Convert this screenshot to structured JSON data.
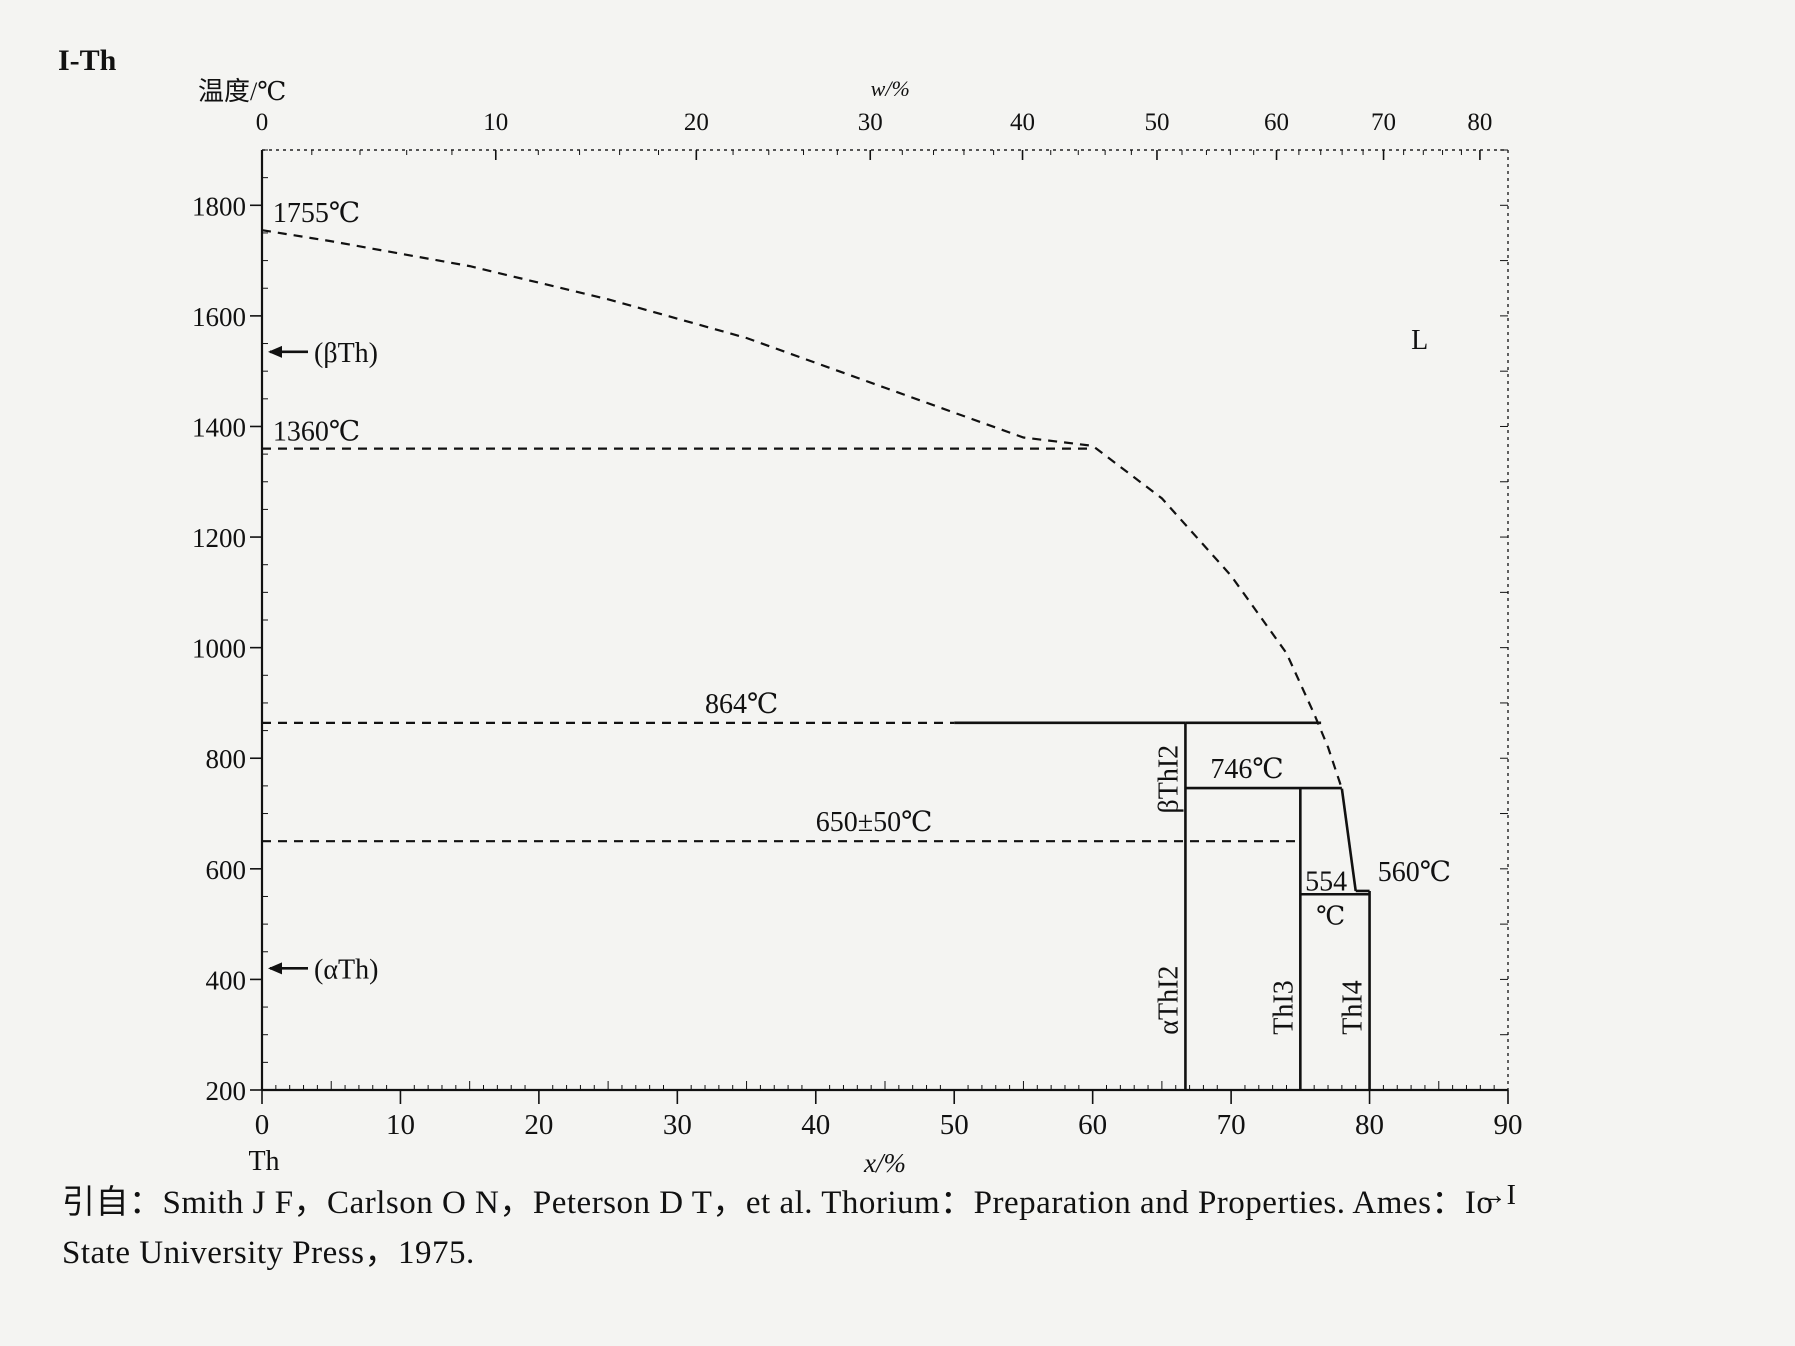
{
  "system_label": "I-Th",
  "chart_data": {
    "type": "line",
    "ylabel": "温度/℃",
    "xlabel": "x/%",
    "top_xlabel": "w/%",
    "x_tick_labels": [
      "0",
      "10",
      "20",
      "30",
      "40",
      "50",
      "60",
      "70",
      "80",
      "90"
    ],
    "y_tick_labels": [
      "200",
      "400",
      "600",
      "800",
      "1000",
      "1200",
      "1400",
      "1600",
      "1800"
    ],
    "top_tick_labels": [
      "0",
      "10",
      "20",
      "30",
      "40",
      "50",
      "60",
      "70",
      "80"
    ],
    "xlim": [
      0,
      90
    ],
    "ylim": [
      200,
      1900
    ],
    "left_component": "Th",
    "right_component": "→I",
    "liquidus_dashed": [
      [
        0,
        1755
      ],
      [
        5,
        1735
      ],
      [
        15,
        1690
      ],
      [
        25,
        1630
      ],
      [
        35,
        1560
      ],
      [
        45,
        1470
      ],
      [
        55,
        1380
      ],
      [
        60,
        1365
      ],
      [
        65,
        1270
      ],
      [
        70,
        1130
      ],
      [
        74,
        990
      ],
      [
        76,
        880
      ],
      [
        77,
        820
      ],
      [
        78,
        745
      ]
    ],
    "liquidus_solid": [
      [
        78,
        745
      ],
      [
        79,
        560
      ]
    ],
    "isotherms": [
      {
        "x": [
          0,
          60
        ],
        "y": 1360,
        "style": "dashed"
      },
      {
        "x": [
          0,
          50
        ],
        "y": 864,
        "style": "dashed"
      },
      {
        "x": [
          50,
          66.7
        ],
        "y": 864,
        "style": "solid"
      },
      {
        "x": [
          66.7,
          76.5
        ],
        "y": 864,
        "style": "solid"
      },
      {
        "x": [
          66.7,
          78
        ],
        "y": 746,
        "style": "solid"
      },
      {
        "x": [
          0,
          75
        ],
        "y": 650,
        "style": "dashed"
      },
      {
        "x": [
          75,
          80
        ],
        "y": 554,
        "style": "solid"
      },
      {
        "x": [
          79,
          80
        ],
        "y": 560,
        "style": "solid"
      }
    ],
    "compound_lines": [
      {
        "x": 66.7,
        "y": [
          200,
          864
        ]
      },
      {
        "x": 75,
        "y": [
          200,
          746
        ]
      },
      {
        "x": 80,
        "y": [
          200,
          560
        ]
      }
    ],
    "annotations": [
      {
        "text": "1755℃",
        "x": 0.5,
        "y": 1755
      },
      {
        "text": "1360℃",
        "x": 0.5,
        "y": 1360
      },
      {
        "text": "864℃",
        "x": 32,
        "y": 864
      },
      {
        "text": "650±50℃",
        "x": 40,
        "y": 650
      },
      {
        "text": "746℃",
        "x": 68.5,
        "y": 746
      },
      {
        "text": "554",
        "x": 75.2,
        "y": 554
      },
      {
        "text": "℃",
        "x": 76,
        "y": 554
      },
      {
        "text": "560℃",
        "x": 80.3,
        "y": 560
      },
      {
        "text": "(βTh)",
        "x": 0,
        "y": 1535
      },
      {
        "text": "(αTh)",
        "x": 0,
        "y": 420
      },
      {
        "text": "L",
        "x": 83,
        "y": 1540
      },
      {
        "text": "βThI2",
        "x": 66.7,
        "y": 700
      },
      {
        "text": "αThI2",
        "x": 66.7,
        "y": 300
      },
      {
        "text": "ThI3",
        "x": 75,
        "y": 300
      },
      {
        "text": "ThI4",
        "x": 80,
        "y": 300
      }
    ]
  },
  "citation": {
    "line1": "引自：Smith J F，Carlson O N，Peterson D T，et al. Thorium：Preparation and Properties. Ames：Io",
    "line2": "State University Press，1975."
  }
}
